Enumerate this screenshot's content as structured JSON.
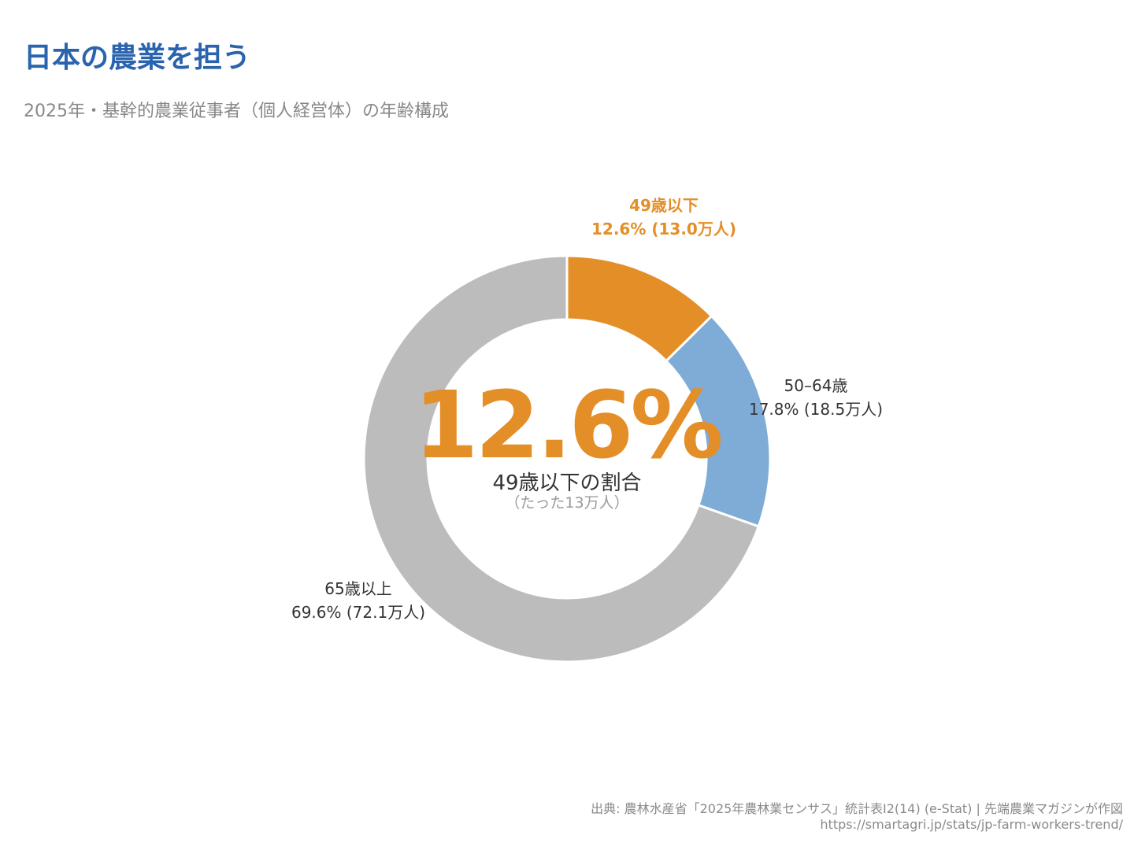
{
  "title": "日本の農業を担う",
  "subtitle": "2025年・基幹的農業従事者（個人経営体）の年齢構成",
  "chart_data": {
    "type": "pie",
    "variant": "donut",
    "slices": [
      {
        "name": "49歳以下",
        "label": "12.6% (13.0万人)",
        "percent": 12.6,
        "value_man": 13.0,
        "color": "#e48e28",
        "label_color": "#e48e28",
        "label_bold": true
      },
      {
        "name": "50–64歳",
        "label": "17.8% (18.5万人)",
        "percent": 17.8,
        "value_man": 18.5,
        "color": "#7facd6",
        "label_color": "#333333",
        "label_bold": false
      },
      {
        "name": "65歳以上",
        "label": "69.6% (72.1万人)",
        "percent": 69.6,
        "value_man": 72.1,
        "color": "#bcbcbc",
        "label_color": "#333333",
        "label_bold": false
      }
    ],
    "center": {
      "value": "12.6%",
      "caption": "49歳以下の割合",
      "note": "（たった13万人）",
      "value_color": "#e48e28"
    },
    "legend": "none"
  },
  "footer": {
    "source": "出典: 農林水産省「2025年農林業センサス」統計表Ⅰ2(14) (e-Stat) | 先端農業マガジンが作図",
    "url": "https://smartagri.jp/stats/jp-farm-workers-trend/"
  }
}
